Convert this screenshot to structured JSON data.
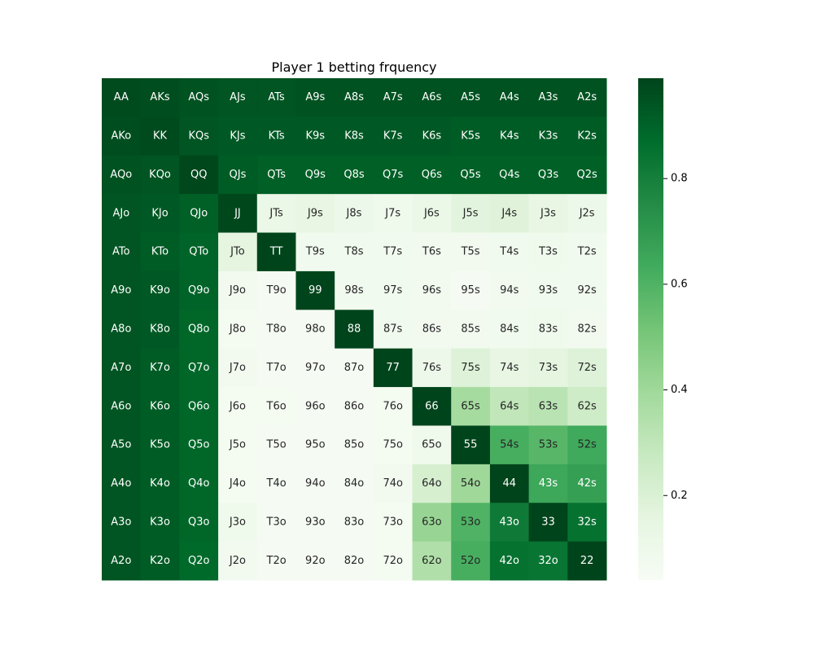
{
  "chart_data": {
    "type": "heatmap",
    "title": "Player 1 betting frquency",
    "xlabel": "",
    "ylabel": "",
    "labels": [
      [
        "AA",
        "AKs",
        "AQs",
        "AJs",
        "ATs",
        "A9s",
        "A8s",
        "A7s",
        "A6s",
        "A5s",
        "A4s",
        "A3s",
        "A2s"
      ],
      [
        "AKo",
        "KK",
        "KQs",
        "KJs",
        "KTs",
        "K9s",
        "K8s",
        "K7s",
        "K6s",
        "K5s",
        "K4s",
        "K3s",
        "K2s"
      ],
      [
        "AQo",
        "KQo",
        "QQ",
        "QJs",
        "QTs",
        "Q9s",
        "Q8s",
        "Q7s",
        "Q6s",
        "Q5s",
        "Q4s",
        "Q3s",
        "Q2s"
      ],
      [
        "AJo",
        "KJo",
        "QJo",
        "JJ",
        "JTs",
        "J9s",
        "J8s",
        "J7s",
        "J6s",
        "J5s",
        "J4s",
        "J3s",
        "J2s"
      ],
      [
        "ATo",
        "KTo",
        "QTo",
        "JTo",
        "TT",
        "T9s",
        "T8s",
        "T7s",
        "T6s",
        "T5s",
        "T4s",
        "T3s",
        "T2s"
      ],
      [
        "A9o",
        "K9o",
        "Q9o",
        "J9o",
        "T9o",
        "99",
        "98s",
        "97s",
        "96s",
        "95s",
        "94s",
        "93s",
        "92s"
      ],
      [
        "A8o",
        "K8o",
        "Q8o",
        "J8o",
        "T8o",
        "98o",
        "88",
        "87s",
        "86s",
        "85s",
        "84s",
        "83s",
        "82s"
      ],
      [
        "A7o",
        "K7o",
        "Q7o",
        "J7o",
        "T7o",
        "97o",
        "87o",
        "77",
        "76s",
        "75s",
        "74s",
        "73s",
        "72s"
      ],
      [
        "A6o",
        "K6o",
        "Q6o",
        "J6o",
        "T6o",
        "96o",
        "86o",
        "76o",
        "66",
        "65s",
        "64s",
        "63s",
        "62s"
      ],
      [
        "A5o",
        "K5o",
        "Q5o",
        "J5o",
        "T5o",
        "95o",
        "85o",
        "75o",
        "65o",
        "55",
        "54s",
        "53s",
        "52s"
      ],
      [
        "A4o",
        "K4o",
        "Q4o",
        "J4o",
        "T4o",
        "94o",
        "84o",
        "74o",
        "64o",
        "54o",
        "44",
        "43s",
        "42s"
      ],
      [
        "A3o",
        "K3o",
        "Q3o",
        "J3o",
        "T3o",
        "93o",
        "83o",
        "73o",
        "63o",
        "53o",
        "43o",
        "33",
        "32s"
      ],
      [
        "A2o",
        "K2o",
        "Q2o",
        "J2o",
        "T2o",
        "92o",
        "82o",
        "72o",
        "62o",
        "52o",
        "42o",
        "32o",
        "22"
      ]
    ],
    "values": [
      [
        0.97,
        0.96,
        0.95,
        0.94,
        0.94,
        0.95,
        0.95,
        0.95,
        0.95,
        0.95,
        0.95,
        0.95,
        0.95
      ],
      [
        0.96,
        0.97,
        0.94,
        0.93,
        0.93,
        0.93,
        0.93,
        0.93,
        0.93,
        0.92,
        0.92,
        0.92,
        0.92
      ],
      [
        0.95,
        0.94,
        0.98,
        0.92,
        0.91,
        0.91,
        0.91,
        0.91,
        0.91,
        0.91,
        0.91,
        0.91,
        0.91
      ],
      [
        0.94,
        0.93,
        0.91,
        0.98,
        0.12,
        0.14,
        0.11,
        0.09,
        0.12,
        0.17,
        0.18,
        0.14,
        0.11
      ],
      [
        0.94,
        0.92,
        0.9,
        0.16,
        0.99,
        0.08,
        0.08,
        0.08,
        0.07,
        0.07,
        0.08,
        0.09,
        0.08
      ],
      [
        0.94,
        0.93,
        0.9,
        0.07,
        0.05,
        0.99,
        0.08,
        0.08,
        0.07,
        0.05,
        0.07,
        0.08,
        0.08
      ],
      [
        0.94,
        0.93,
        0.89,
        0.06,
        0.05,
        0.05,
        0.99,
        0.08,
        0.07,
        0.07,
        0.08,
        0.09,
        0.07
      ],
      [
        0.94,
        0.92,
        0.89,
        0.07,
        0.05,
        0.05,
        0.05,
        0.99,
        0.1,
        0.19,
        0.14,
        0.16,
        0.19
      ],
      [
        0.94,
        0.92,
        0.89,
        0.06,
        0.06,
        0.05,
        0.05,
        0.06,
        0.99,
        0.38,
        0.3,
        0.32,
        0.25
      ],
      [
        0.94,
        0.92,
        0.89,
        0.06,
        0.05,
        0.05,
        0.05,
        0.06,
        0.09,
        0.99,
        0.62,
        0.58,
        0.64
      ],
      [
        0.94,
        0.92,
        0.89,
        0.06,
        0.05,
        0.05,
        0.05,
        0.07,
        0.22,
        0.4,
        0.99,
        0.65,
        0.68
      ],
      [
        0.94,
        0.92,
        0.89,
        0.09,
        0.05,
        0.05,
        0.05,
        0.06,
        0.42,
        0.6,
        0.82,
        0.99,
        0.85
      ],
      [
        0.94,
        0.92,
        0.88,
        0.07,
        0.05,
        0.05,
        0.05,
        0.06,
        0.35,
        0.62,
        0.85,
        0.84,
        0.99
      ]
    ],
    "vmin": 0.04,
    "vmax": 0.99,
    "colormap": [
      "#f7fcf5",
      "#e5f5e0",
      "#c7e9c0",
      "#a1d99b",
      "#74c476",
      "#41ab5d",
      "#238b45",
      "#006d2c",
      "#00441b"
    ],
    "colorbar": {
      "ticks": [
        0.2,
        0.4,
        0.6,
        0.8
      ],
      "tick_labels": [
        "0.2",
        "0.4",
        "0.6",
        "0.8"
      ]
    },
    "grid": false,
    "legend": "colorbar-right"
  }
}
